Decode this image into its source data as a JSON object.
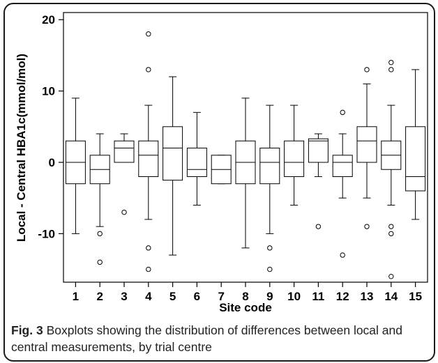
{
  "caption": {
    "label": "Fig. 3",
    "text": "Boxplots showing the distribution of differences between local and central measurements, by trial centre"
  },
  "chart_data": {
    "type": "boxplot",
    "xlabel": "Site code",
    "ylabel": "Local - Central HBA1c(mmol/mol)",
    "ylim": [
      -16.8,
      21
    ],
    "yticks": [
      -10,
      0,
      10,
      20
    ],
    "grid": false,
    "categories": [
      "1",
      "2",
      "3",
      "4",
      "5",
      "6",
      "7",
      "8",
      "9",
      "10",
      "11",
      "12",
      "13",
      "14",
      "15"
    ],
    "boxes": [
      {
        "site": "1",
        "whisker_low": -10,
        "q1": -3,
        "median": 0,
        "q3": 3,
        "whisker_high": 9,
        "outliers": []
      },
      {
        "site": "2",
        "whisker_low": -9,
        "q1": -3,
        "median": -1,
        "q3": 1,
        "whisker_high": 4,
        "outliers": [
          -10,
          -14
        ]
      },
      {
        "site": "3",
        "whisker_low": 0,
        "q1": 0,
        "median": 2,
        "q3": 3,
        "whisker_high": 4,
        "outliers": [
          -7
        ]
      },
      {
        "site": "4",
        "whisker_low": -8,
        "q1": -2,
        "median": 1,
        "q3": 3,
        "whisker_high": 8,
        "outliers": [
          18,
          13,
          -12,
          -15
        ]
      },
      {
        "site": "5",
        "whisker_low": -13,
        "q1": -2.5,
        "median": 2,
        "q3": 5,
        "whisker_high": 12,
        "outliers": []
      },
      {
        "site": "6",
        "whisker_low": -6,
        "q1": -2,
        "median": -1,
        "q3": 2,
        "whisker_high": 7,
        "outliers": []
      },
      {
        "site": "7",
        "whisker_low": -3,
        "q1": -3,
        "median": -1,
        "q3": 1,
        "whisker_high": 1,
        "outliers": []
      },
      {
        "site": "8",
        "whisker_low": -12,
        "q1": -3,
        "median": 0,
        "q3": 3,
        "whisker_high": 9,
        "outliers": []
      },
      {
        "site": "9",
        "whisker_low": -10,
        "q1": -3,
        "median": 0,
        "q3": 2,
        "whisker_high": 8,
        "outliers": [
          -12,
          -15
        ]
      },
      {
        "site": "10",
        "whisker_low": -6,
        "q1": -2,
        "median": 0,
        "q3": 3,
        "whisker_high": 8,
        "outliers": []
      },
      {
        "site": "11",
        "whisker_low": -2,
        "q1": 0,
        "median": 3,
        "q3": 3.3,
        "whisker_high": 4,
        "outliers": [
          -9
        ]
      },
      {
        "site": "12",
        "whisker_low": -5,
        "q1": -2,
        "median": 0,
        "q3": 1,
        "whisker_high": 4,
        "outliers": [
          7,
          -13
        ]
      },
      {
        "site": "13",
        "whisker_low": -5,
        "q1": 0,
        "median": 3,
        "q3": 5,
        "whisker_high": 11,
        "outliers": [
          13,
          -9
        ]
      },
      {
        "site": "14",
        "whisker_low": -6,
        "q1": -1,
        "median": 1,
        "q3": 3,
        "whisker_high": 8,
        "outliers": [
          14,
          13,
          -9,
          -10,
          -16
        ]
      },
      {
        "site": "15",
        "whisker_low": -8,
        "q1": -4,
        "median": -2,
        "q3": 5,
        "whisker_high": 13,
        "outliers": []
      }
    ]
  }
}
